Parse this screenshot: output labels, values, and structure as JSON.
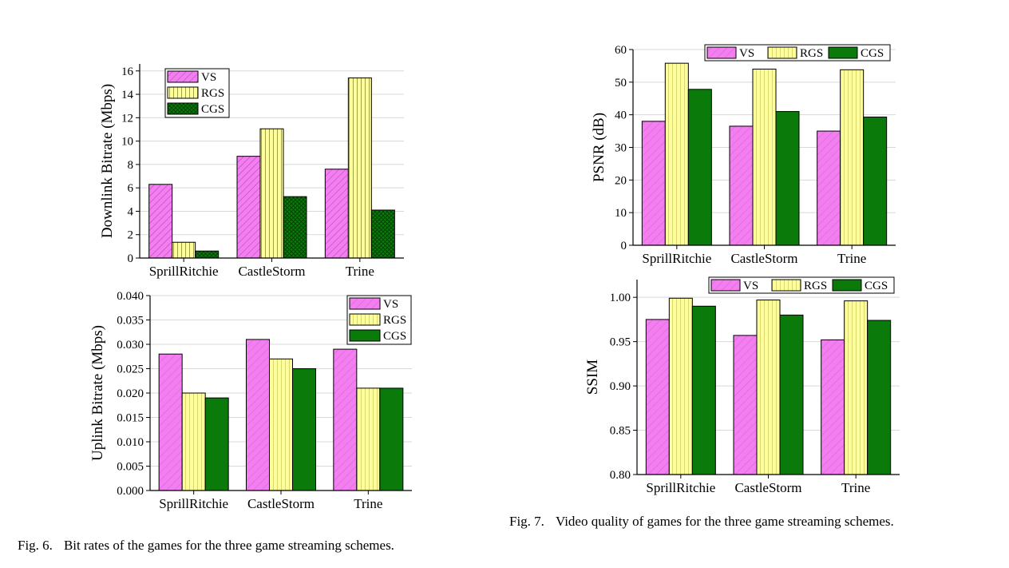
{
  "captions": {
    "fig6_number": "Fig. 6.",
    "fig6_text": "Bit rates of the games for the three game streaming schemes.",
    "fig7_number": "Fig. 7.",
    "fig7_text": "Video quality of games for the three game streaming schemes."
  },
  "colors": {
    "VS": "#f37ef0",
    "RGS": "#fdfd9c",
    "CGS": "#0a7a0a",
    "grid": "#d8d8d8"
  },
  "chart_data": [
    {
      "id": "downlink",
      "type": "bar",
      "categories": [
        "SprillRitchie",
        "CastleStorm",
        "Trine"
      ],
      "series": [
        {
          "name": "VS",
          "values": [
            6.3,
            8.7,
            7.6
          ]
        },
        {
          "name": "RGS",
          "values": [
            1.35,
            11.05,
            15.4
          ]
        },
        {
          "name": "CGS",
          "values": [
            0.6,
            5.25,
            4.1
          ]
        }
      ],
      "ylabel": "Downlink Bitrate (Mbps)",
      "ylim": [
        0,
        16.6
      ],
      "yticks": [
        "0",
        "2",
        "4",
        "6",
        "8",
        "10",
        "12",
        "14",
        "16"
      ],
      "legend": "top-left",
      "grid": true,
      "pattern": true
    },
    {
      "id": "uplink",
      "type": "bar",
      "categories": [
        "SprillRitchie",
        "CastleStorm",
        "Trine"
      ],
      "series": [
        {
          "name": "VS",
          "values": [
            0.028,
            0.031,
            0.029
          ]
        },
        {
          "name": "RGS",
          "values": [
            0.02,
            0.027,
            0.021
          ]
        },
        {
          "name": "CGS",
          "values": [
            0.019,
            0.025,
            0.021
          ]
        }
      ],
      "ylabel": "Uplink Bitrate (Mbps)",
      "ylim": [
        0,
        0.04
      ],
      "yticks": [
        "0.000",
        "0.005",
        "0.010",
        "0.015",
        "0.020",
        "0.025",
        "0.030",
        "0.035",
        "0.040"
      ],
      "legend": "top-right",
      "grid": true,
      "pattern": false
    },
    {
      "id": "psnr",
      "type": "bar",
      "categories": [
        "SprillRitchie",
        "CastleStorm",
        "Trine"
      ],
      "series": [
        {
          "name": "VS",
          "values": [
            38,
            36.5,
            35
          ]
        },
        {
          "name": "RGS",
          "values": [
            55.8,
            54,
            53.8
          ]
        },
        {
          "name": "CGS",
          "values": [
            47.8,
            41,
            39.3
          ]
        }
      ],
      "ylabel": "PSNR (dB)",
      "ylim": [
        0,
        60
      ],
      "yticks": [
        "0",
        "10",
        "20",
        "30",
        "40",
        "50",
        "60"
      ],
      "legend": "top",
      "grid": true,
      "pattern": false
    },
    {
      "id": "ssim",
      "type": "bar",
      "categories": [
        "SprillRitchie",
        "CastleStorm",
        "Trine"
      ],
      "series": [
        {
          "name": "VS",
          "values": [
            0.975,
            0.957,
            0.952
          ]
        },
        {
          "name": "RGS",
          "values": [
            0.999,
            0.997,
            0.996
          ]
        },
        {
          "name": "CGS",
          "values": [
            0.99,
            0.98,
            0.974
          ]
        }
      ],
      "ylabel": "SSIM",
      "ylim": [
        0.8,
        1.02
      ],
      "yticks": [
        "0.80",
        "0.85",
        "0.90",
        "0.95",
        "1.00"
      ],
      "legend": "top",
      "grid": true,
      "pattern": false
    }
  ]
}
